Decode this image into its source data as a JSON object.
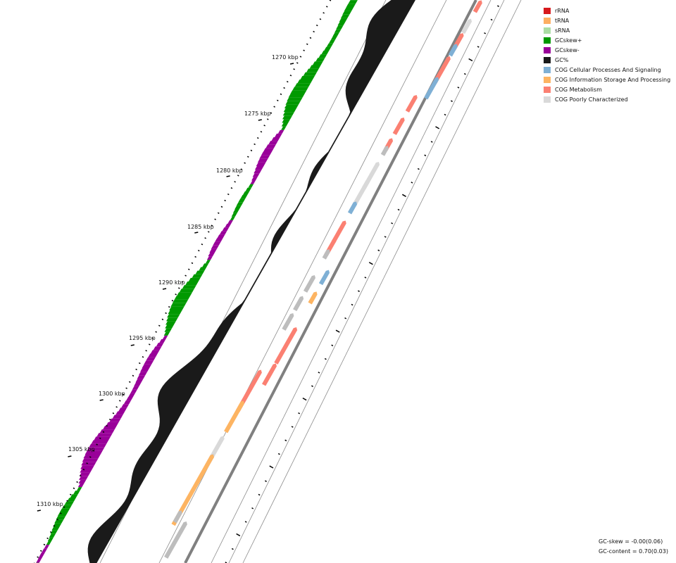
{
  "legend": [
    {
      "label": "rRNA",
      "color": "#d7191c"
    },
    {
      "label": "tRNA",
      "color": "#fdae61"
    },
    {
      "label": "sRNA",
      "color": "#abdda4"
    },
    {
      "label": "GCskew+",
      "color": "#009900"
    },
    {
      "label": "GCskew-",
      "color": "#990099"
    },
    {
      "label": "GC%",
      "color": "#1a1a1a"
    },
    {
      "label": "COG Cellular Processes And Signaling",
      "color": "#7fb0d5"
    },
    {
      "label": "COG Information Storage And Processing",
      "color": "#fdb462"
    },
    {
      "label": "COG Metabolism",
      "color": "#fb8072"
    },
    {
      "label": "COG Poorly Characterized",
      "color": "#d9d9d9"
    }
  ],
  "stats": {
    "gc_skew": "GC-skew = -0.00(0.06)",
    "gc_content": "GC-content = 0.70(0.03)"
  },
  "ticks": [
    "1270 kbp",
    "1275 kbp",
    "1280 kbp",
    "1285 kbp",
    "1290 kbp",
    "1295 kbp",
    "1300 kbp",
    "1305 kbp",
    "1310 kbp"
  ],
  "colors": {
    "backbone": "#808080",
    "hypothetical": "#bdbdbd",
    "track_line": "#8c8c8c"
  }
}
